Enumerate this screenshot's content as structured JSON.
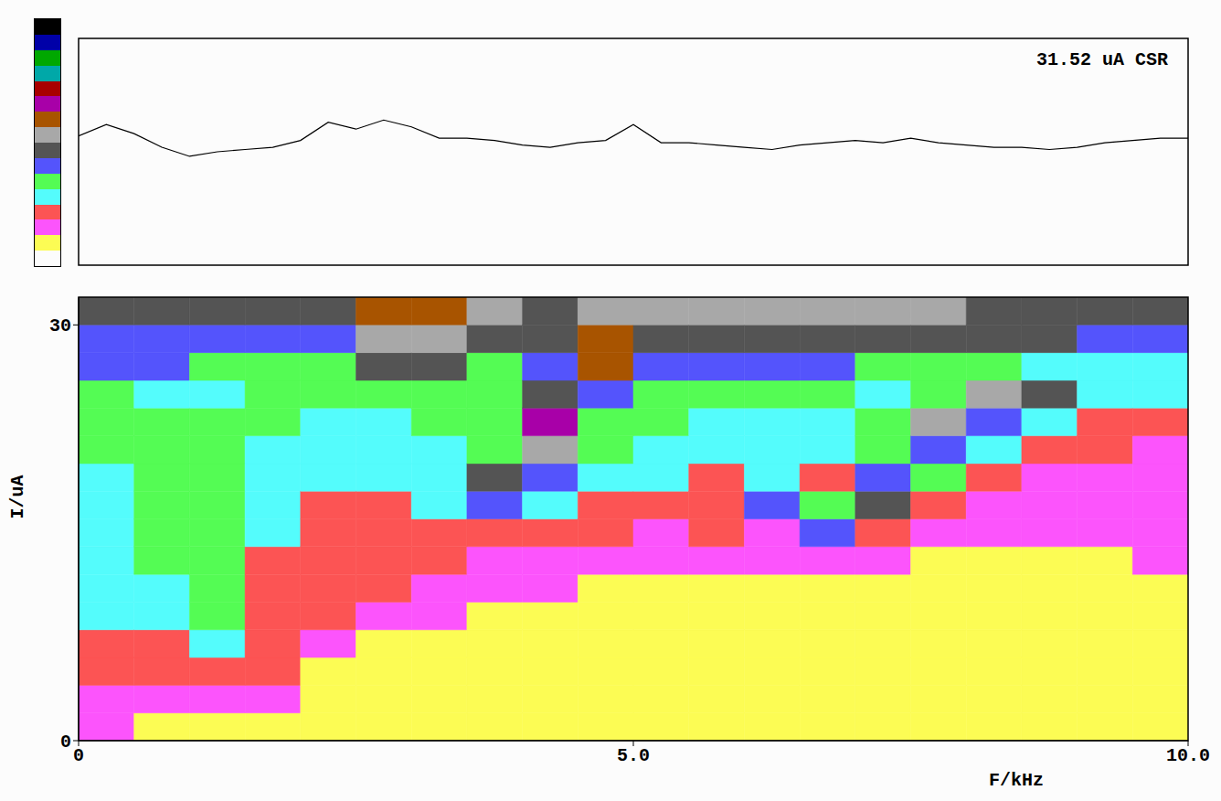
{
  "chart_data": [
    {
      "type": "line",
      "annotation": "31.52 uA CSR",
      "color": "#000000",
      "tick_labels": false,
      "grid": false,
      "xlim": [
        0,
        10
      ],
      "ylim": [
        0,
        100
      ],
      "x": [
        0,
        0.25,
        0.5,
        0.75,
        1,
        1.25,
        1.5,
        1.75,
        2,
        2.25,
        2.5,
        2.75,
        3,
        3.25,
        3.5,
        3.75,
        4,
        4.25,
        4.5,
        4.75,
        5,
        5.25,
        5.5,
        5.75,
        6,
        6.25,
        6.5,
        6.75,
        7,
        7.25,
        7.5,
        7.75,
        8,
        8.25,
        8.5,
        8.75,
        9,
        9.25,
        9.5,
        9.75,
        10
      ],
      "values": [
        57,
        62,
        58,
        52,
        48,
        50,
        51,
        52,
        55,
        63,
        60,
        64,
        61,
        56,
        56,
        55,
        53,
        52,
        54,
        55,
        62,
        54,
        54,
        53,
        52,
        51,
        53,
        54,
        55,
        54,
        56,
        54,
        53,
        52,
        52,
        51,
        52,
        54,
        55,
        56,
        56
      ]
    },
    {
      "type": "heatmap",
      "x_label": "F/kHz",
      "y_label": "I/uA",
      "grid": false,
      "xlim": [
        0,
        10
      ],
      "ylim": [
        0,
        32
      ],
      "xticks": [
        0,
        {
          "value": 5,
          "label": "5.0"
        },
        {
          "value": 10,
          "label": "10.0"
        }
      ],
      "yticks": [
        0,
        30
      ],
      "x_bins": [
        0,
        0.5,
        1,
        1.5,
        2,
        2.5,
        3,
        3.5,
        4,
        4.5,
        5,
        5.5,
        6,
        6.5,
        7,
        7.5,
        8,
        8.5,
        9,
        9.5,
        10
      ],
      "y_bins": [
        0,
        2,
        4,
        6,
        8,
        10,
        12,
        14,
        16,
        18,
        20,
        22,
        24,
        26,
        28,
        30,
        32
      ],
      "z": [
        [
          2,
          2,
          3,
          3,
          4,
          4,
          4,
          4,
          4,
          4,
          5,
          5,
          5,
          6,
          6,
          7
        ],
        [
          1,
          2,
          3,
          3,
          4,
          4,
          5,
          5,
          5,
          5,
          5,
          5,
          4,
          6,
          6,
          7
        ],
        [
          1,
          2,
          3,
          4,
          5,
          5,
          5,
          5,
          5,
          5,
          5,
          5,
          4,
          5,
          6,
          7
        ],
        [
          1,
          2,
          3,
          3,
          3,
          3,
          3,
          4,
          4,
          4,
          4,
          5,
          5,
          5,
          6,
          7
        ],
        [
          1,
          1,
          1,
          2,
          3,
          3,
          3,
          3,
          3,
          4,
          4,
          4,
          5,
          5,
          6,
          7
        ],
        [
          1,
          1,
          1,
          1,
          2,
          3,
          3,
          3,
          3,
          4,
          4,
          4,
          5,
          7,
          8,
          9
        ],
        [
          1,
          1,
          1,
          1,
          2,
          2,
          3,
          3,
          4,
          4,
          4,
          5,
          5,
          7,
          8,
          9
        ],
        [
          1,
          1,
          1,
          1,
          1,
          2,
          2,
          3,
          6,
          7,
          5,
          5,
          5,
          5,
          7,
          8
        ],
        [
          1,
          1,
          1,
          1,
          1,
          2,
          2,
          3,
          4,
          6,
          8,
          10,
          7,
          6,
          7,
          7
        ],
        [
          1,
          1,
          1,
          1,
          1,
          1,
          2,
          3,
          3,
          4,
          5,
          5,
          6,
          9,
          9,
          8
        ],
        [
          1,
          1,
          1,
          1,
          1,
          1,
          2,
          2,
          3,
          4,
          4,
          5,
          5,
          6,
          7,
          8
        ],
        [
          1,
          1,
          1,
          1,
          1,
          1,
          2,
          3,
          3,
          3,
          4,
          4,
          5,
          6,
          7,
          8
        ],
        [
          1,
          1,
          1,
          1,
          1,
          1,
          2,
          2,
          6,
          4,
          4,
          4,
          5,
          6,
          7,
          8
        ],
        [
          1,
          1,
          1,
          1,
          1,
          1,
          2,
          6,
          5,
          3,
          4,
          4,
          5,
          6,
          7,
          8
        ],
        [
          1,
          1,
          1,
          1,
          1,
          1,
          2,
          3,
          7,
          6,
          5,
          5,
          4,
          5,
          7,
          8
        ],
        [
          1,
          1,
          1,
          1,
          1,
          1,
          1,
          2,
          3,
          5,
          6,
          8,
          5,
          5,
          7,
          8
        ],
        [
          1,
          1,
          1,
          1,
          1,
          1,
          1,
          2,
          2,
          3,
          4,
          6,
          8,
          5,
          7,
          7
        ],
        [
          1,
          1,
          1,
          1,
          1,
          1,
          1,
          2,
          2,
          2,
          3,
          4,
          7,
          4,
          7,
          7
        ],
        [
          1,
          1,
          1,
          1,
          1,
          1,
          1,
          2,
          2,
          2,
          3,
          3,
          4,
          4,
          6,
          7
        ],
        [
          1,
          1,
          1,
          1,
          1,
          1,
          2,
          2,
          2,
          2,
          2,
          3,
          4,
          4,
          6,
          7
        ]
      ],
      "colorbar": {
        "range": [
          0,
          15
        ],
        "colors": [
          "#fcfcfc",
          "#fcfc54",
          "#fc54fc",
          "#fc5454",
          "#54fcfc",
          "#54fc54",
          "#5454fc",
          "#545454",
          "#a8a8a8",
          "#a85400",
          "#a800a8",
          "#a80000",
          "#00a8a8",
          "#00a800",
          "#0000a8",
          "#000000"
        ]
      }
    }
  ]
}
